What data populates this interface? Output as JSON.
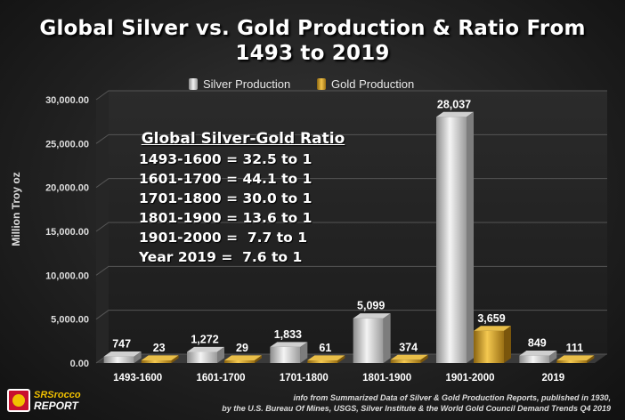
{
  "chart_data": {
    "type": "bar",
    "title": [
      "Global Silver vs. Gold Production & Ratio From",
      "1493 to 2019"
    ],
    "categories": [
      "1493-1600",
      "1601-1700",
      "1701-1800",
      "1801-1900",
      "1901-2000",
      "2019"
    ],
    "series": [
      {
        "name": "Silver Production",
        "values": [
          747,
          1272,
          1833,
          5099,
          28037,
          849
        ],
        "labels": [
          "747",
          "1,272",
          "1,833",
          "5,099",
          "28,037",
          "849"
        ]
      },
      {
        "name": "Gold Production",
        "values": [
          23,
          29,
          61,
          374,
          3659,
          111
        ],
        "labels": [
          "23",
          "29",
          "61",
          "374",
          "3,659",
          "111"
        ]
      }
    ],
    "ylabel": "Million Troy oz",
    "xlabel": "",
    "ylim": [
      0,
      30000
    ],
    "yticks": [
      "0.00",
      "5,000.00",
      "10,000.00",
      "15,000.00",
      "20,000.00",
      "25,000.00",
      "30,000.00"
    ],
    "ytick_values": [
      0,
      5000,
      10000,
      15000,
      20000,
      25000,
      30000
    ],
    "colors": {
      "silver": "#d9d9d9",
      "gold": "#e0b030"
    }
  },
  "ratio_box": {
    "title": "Global Silver-Gold Ratio",
    "lines": [
      "1493-1600 = 32.5 to 1",
      "1601-1700 = 44.1 to 1",
      "1701-1800 = 30.0 to 1",
      "1801-1900 = 13.6 to 1",
      "1901-2000 =  7.7 to 1",
      "Year 2019 =  7.6 to 1"
    ]
  },
  "logo": {
    "line1": "SRSrocco",
    "line2": "REPORT"
  },
  "source": {
    "line1": "info from Summarized Data of Silver & Gold Production Reports, published in 1930,",
    "line2": "by  the  U.S. Bureau Of Mines,  USGS, Silver Institute & the World Gold Council Demand Trends Q4 2019"
  }
}
